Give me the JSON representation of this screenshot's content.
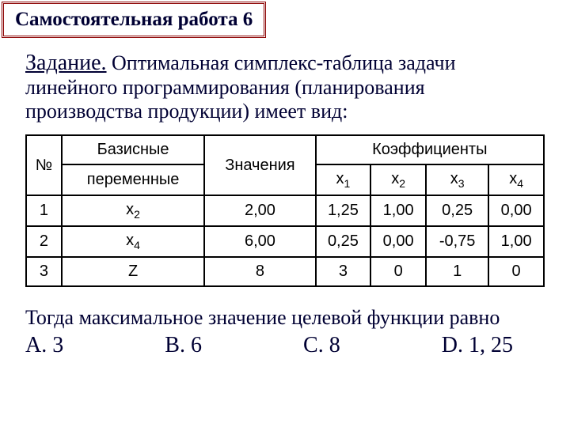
{
  "title": "Самостоятельная работа 6",
  "task_label": "Задание.",
  "task_text_line1": " Оптимальная симплекс-таблица задачи",
  "task_text_line2": "линейного программирования (планирования",
  "task_text_line3": "производства продукции) имеет вид:",
  "table": {
    "headers": {
      "col_num": "№",
      "col_basis_1": "Базисные",
      "col_basis_2": "переменные",
      "col_values": "Значения",
      "col_coeffs": "Коэффициенты",
      "x1": "x",
      "x1_sub": "1",
      "x2": "x",
      "x2_sub": "2",
      "x3": "x",
      "x3_sub": "3",
      "x4": "x",
      "x4_sub": "4"
    },
    "rows": [
      {
        "num": "1",
        "var": "x",
        "var_sub": "2",
        "val": "2,00",
        "c1": "1,25",
        "c2": "1,00",
        "c3": "0,25",
        "c4": "0,00"
      },
      {
        "num": "2",
        "var": "x",
        "var_sub": "4",
        "val": "6,00",
        "c1": "0,25",
        "c2": "0,00",
        "c3": "-0,75",
        "c4": "1,00"
      },
      {
        "num": "3",
        "var": "Z",
        "var_sub": "",
        "val": "8",
        "c1": "3",
        "c2": "0",
        "c3": "1",
        "c4": "0"
      }
    ]
  },
  "conclusion_text": "Тогда максимальное значение целевой функции равно",
  "options": {
    "a": "A. 3",
    "b": "B. 6",
    "c": "C. 8",
    "d": "D. 1, 25"
  },
  "colors": {
    "title_border": "#8b0000",
    "text": "#000033",
    "table_border": "#000000"
  }
}
